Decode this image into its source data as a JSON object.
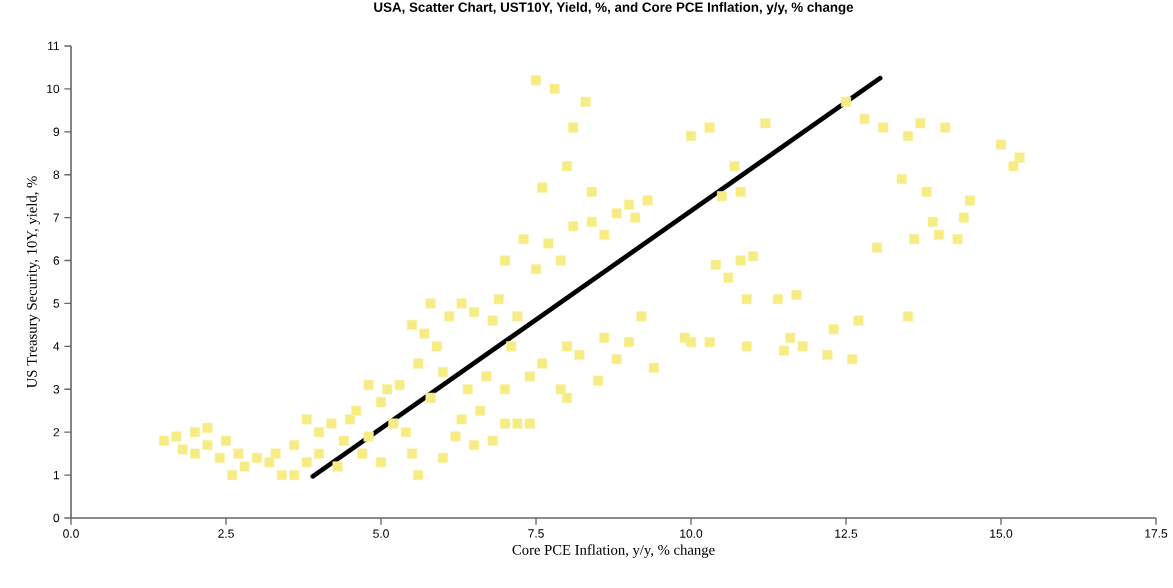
{
  "chart_data": {
    "type": "scatter",
    "title": "USA, Scatter Chart, UST10Y, Yield, %, and Core PCE Inflation, y/y, % change",
    "xlabel": "Core PCE Inflation, y/y, % change",
    "ylabel": "US Treasury Security, 10Y, yield, %",
    "xlim": [
      0,
      17.5
    ],
    "ylim": [
      0,
      11
    ],
    "xticks": [
      {
        "value": 0,
        "label": "0.0"
      },
      {
        "value": 2.5,
        "label": "2.5"
      },
      {
        "value": 5,
        "label": "5.0"
      },
      {
        "value": 7.5,
        "label": "7.5"
      },
      {
        "value": 10,
        "label": "10.0"
      },
      {
        "value": 12.5,
        "label": "12.5"
      },
      {
        "value": 15,
        "label": "15.0"
      },
      {
        "value": 17.5,
        "label": "17.5"
      }
    ],
    "yticks": [
      0,
      1,
      2,
      3,
      4,
      5,
      6,
      7,
      8,
      9,
      10,
      11
    ],
    "series": [
      {
        "marker": "square",
        "color": "#f7ec84",
        "x": [
          1.5,
          1.7,
          1.8,
          2.0,
          2.0,
          2.2,
          2.2,
          2.4,
          2.5,
          2.6,
          2.7,
          2.8,
          3.0,
          3.2,
          3.3,
          3.4,
          3.6,
          3.6,
          3.8,
          3.8,
          4.0,
          4.0,
          4.2,
          4.3,
          4.4,
          4.5,
          4.6,
          4.7,
          4.8,
          4.8,
          5.0,
          5.0,
          5.1,
          5.2,
          5.3,
          5.4,
          5.5,
          5.5,
          5.6,
          5.6,
          5.7,
          5.8,
          5.8,
          5.9,
          6.0,
          6.0,
          6.1,
          6.2,
          6.3,
          6.3,
          6.4,
          6.5,
          6.5,
          6.6,
          6.7,
          6.8,
          6.8,
          6.9,
          7.0,
          7.0,
          7.1,
          7.2,
          7.2,
          7.3,
          7.4,
          7.4,
          7.5,
          7.5,
          7.6,
          7.6,
          7.7,
          7.8,
          7.9,
          7.9,
          8.0,
          8.0,
          8.1,
          8.1,
          8.2,
          8.3,
          8.4,
          8.5,
          8.6,
          8.6,
          8.8,
          8.8,
          9.0,
          9.0,
          9.2,
          9.3,
          9.4,
          10.0,
          10.0,
          10.3,
          10.3,
          10.4,
          10.5,
          10.6,
          10.8,
          10.8,
          10.9,
          10.9,
          11.0,
          11.2,
          11.6,
          11.7,
          11.8,
          12.2,
          12.3,
          12.5,
          12.7,
          12.8,
          13.0,
          13.1,
          13.4,
          13.5,
          13.5,
          13.6,
          13.7,
          13.8,
          13.9,
          14.0,
          14.1,
          14.3,
          14.4,
          14.5,
          15.0,
          15.2,
          15.3,
          11.5,
          12.6,
          11.4,
          9.9,
          10.7,
          9.1,
          8.4,
          8.0,
          7.0
        ],
        "values": [
          1.8,
          1.9,
          1.6,
          1.5,
          2.0,
          1.7,
          2.1,
          1.4,
          1.8,
          1.0,
          1.5,
          1.2,
          1.4,
          1.3,
          1.5,
          1.0,
          1.0,
          1.7,
          1.3,
          2.3,
          1.5,
          2.0,
          2.2,
          1.2,
          1.8,
          2.3,
          2.5,
          1.5,
          1.9,
          3.1,
          2.7,
          1.3,
          3.0,
          2.2,
          3.1,
          2.0,
          1.5,
          4.5,
          1.0,
          3.6,
          4.3,
          2.8,
          5.0,
          4.0,
          1.4,
          3.4,
          4.7,
          1.9,
          5.0,
          2.3,
          3.0,
          4.8,
          1.7,
          2.5,
          3.3,
          4.6,
          1.8,
          5.1,
          2.2,
          3.0,
          4.0,
          4.7,
          2.2,
          6.5,
          3.3,
          2.2,
          10.2,
          5.8,
          3.6,
          7.7,
          6.4,
          10.0,
          3.0,
          6.0,
          8.2,
          4.0,
          9.1,
          6.8,
          3.8,
          9.7,
          7.6,
          3.2,
          4.2,
          6.6,
          7.1,
          3.7,
          7.3,
          4.1,
          4.7,
          7.4,
          3.5,
          8.9,
          4.1,
          9.1,
          4.1,
          5.9,
          7.5,
          5.6,
          7.6,
          6.0,
          5.1,
          4.0,
          6.1,
          9.2,
          4.2,
          5.2,
          4.0,
          3.8,
          4.4,
          9.7,
          4.6,
          9.3,
          6.3,
          9.1,
          7.9,
          8.9,
          4.7,
          6.5,
          9.2,
          7.6,
          6.9,
          6.6,
          9.1,
          6.5,
          7.0,
          7.4,
          8.7,
          8.2,
          8.4,
          3.9,
          3.7,
          5.1,
          4.2,
          8.2,
          7.0,
          6.9,
          2.8,
          6.0
        ]
      },
      {
        "type": "line",
        "color": "#000000",
        "x": [
          3.9,
          13.05
        ],
        "values": [
          0.97,
          10.25
        ]
      }
    ]
  }
}
